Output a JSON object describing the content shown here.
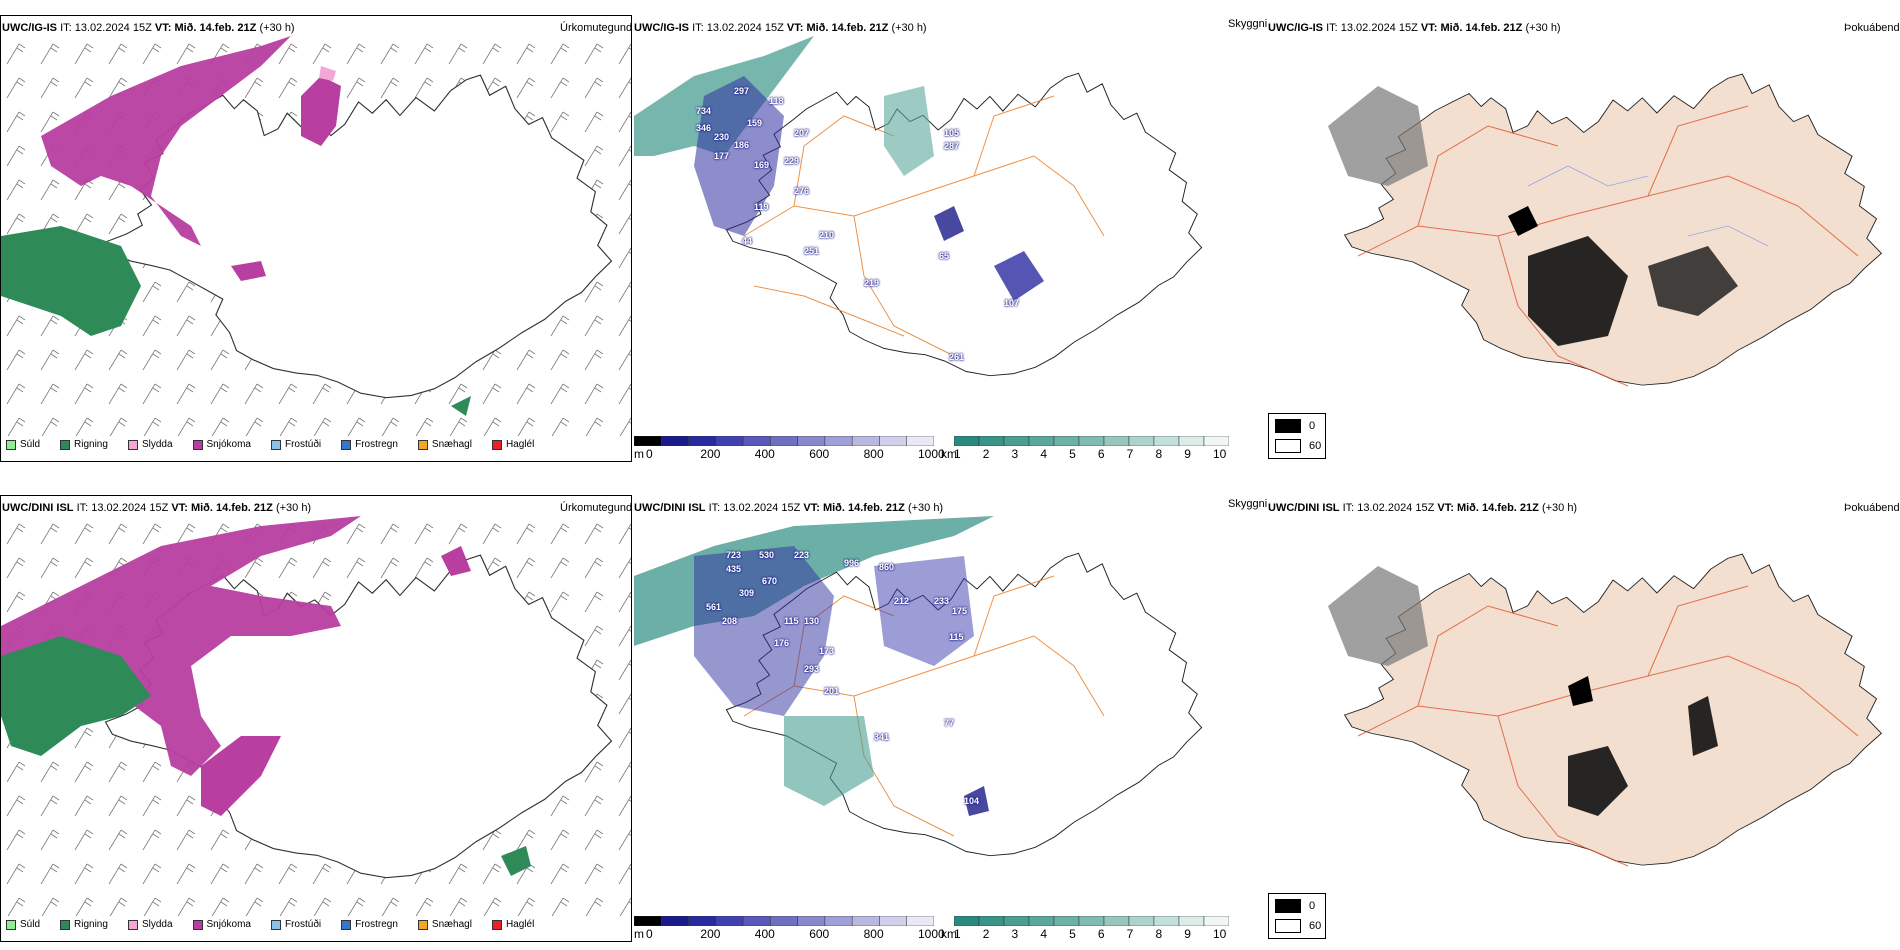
{
  "rows": [
    {
      "id": "top",
      "model": "UWC/IG-IS",
      "it_label": "IT:",
      "it_value": "13.02.2024 15Z",
      "vt_label": "VT:",
      "vt_value": "Mið. 14.feb. 21Z",
      "lead": "(+30 h)",
      "ptype_label": "Úrkomutegund",
      "vis_label": "Skyggni",
      "fog_label": "Þokuábendi"
    },
    {
      "id": "bottom",
      "model": "UWC/DINI ISL",
      "it_label": "IT:",
      "it_value": "13.02.2024 15Z",
      "vt_label": "VT:",
      "vt_value": "Mið. 14.feb. 21Z",
      "lead": "(+30 h)",
      "ptype_label": "Úrkomutegund",
      "vis_label": "Skyggni",
      "fog_label": "Þokuábendi"
    }
  ],
  "precip_legend": [
    {
      "label": "Súld",
      "color": "#90ee90"
    },
    {
      "label": "Rigning",
      "color": "#2e8b57"
    },
    {
      "label": "Slydda",
      "color": "#f4a6d7"
    },
    {
      "label": "Snjókoma",
      "color": "#b83ea0"
    },
    {
      "label": "Frostúði",
      "color": "#87c3f0"
    },
    {
      "label": "Frostregn",
      "color": "#3377c8"
    },
    {
      "label": "Snæhagl",
      "color": "#f5a623"
    },
    {
      "label": "Haglél",
      "color": "#e8202a"
    }
  ],
  "ceiling_bar": {
    "unit": "m",
    "ticks": [
      "0",
      "200",
      "400",
      "600",
      "800",
      "1000"
    ],
    "colors": [
      "#000000",
      "#1a1a8a",
      "#2a2aa0",
      "#4040b0",
      "#5858b8",
      "#7070c0",
      "#8888cc",
      "#a0a0d8",
      "#b8b8e0",
      "#d0d0ec",
      "#e8e8f6"
    ]
  },
  "vis_bar": {
    "unit": "km",
    "ticks": [
      "1",
      "2",
      "3",
      "4",
      "5",
      "6",
      "7",
      "8",
      "9",
      "10"
    ],
    "colors": [
      "#2a8a80",
      "#3a9488",
      "#4a9e92",
      "#5aa89c",
      "#6cb2a6",
      "#80bcb2",
      "#96c8be",
      "#acd4cc",
      "#c4e0da",
      "#dcece8",
      "#f0f6f4"
    ]
  },
  "fog_legend": [
    {
      "label": "0",
      "color": "#000000"
    },
    {
      "label": "60",
      "color": "#ffffff"
    }
  ],
  "ceiling_labels_top": [
    "297",
    "118",
    "734",
    "346",
    "230",
    "186",
    "177",
    "207",
    "159",
    "169",
    "229",
    "276",
    "119",
    "44",
    "210",
    "251",
    "219",
    "65",
    "107",
    "261",
    "287",
    "105"
  ],
  "ceiling_labels_bottom": [
    "723",
    "530",
    "223",
    "996",
    "435",
    "670",
    "309",
    "561",
    "208",
    "115",
    "130",
    "176",
    "173",
    "293",
    "201",
    "341",
    "77",
    "104",
    "860",
    "212",
    "233",
    "175",
    "115"
  ]
}
